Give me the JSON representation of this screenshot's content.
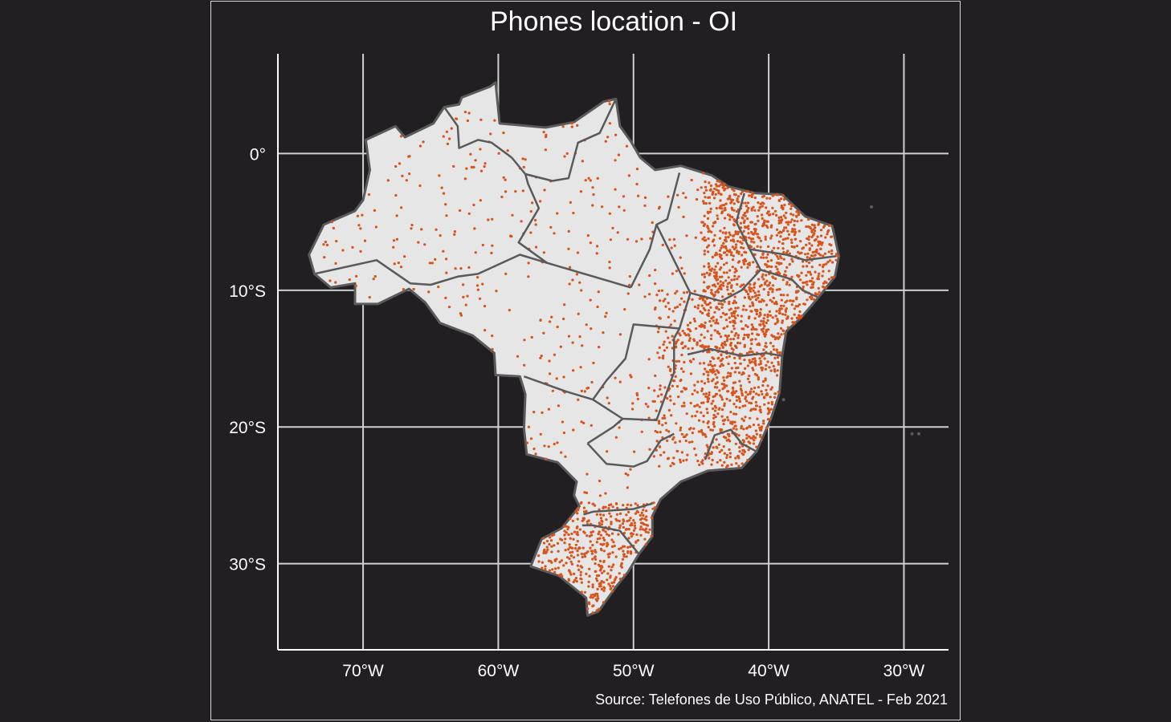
{
  "title": "Phones location - OI",
  "caption": "Source: Telefones de Uso Público, ANATEL - Feb 2021",
  "colors": {
    "background": "#211f22",
    "land": "#e6e6e6",
    "border": "#5a5a5a",
    "grid": "#d0d0d0",
    "points": "#d9541c"
  },
  "map": {
    "lon_range": [
      -76.3,
      -26.7
    ],
    "lat_range": [
      -36.3,
      7.3
    ],
    "lon_ticks": [
      {
        "value": -70,
        "label": "70°W"
      },
      {
        "value": -60,
        "label": "60°W"
      },
      {
        "value": -50,
        "label": "50°W"
      },
      {
        "value": -40,
        "label": "40°W"
      },
      {
        "value": -30,
        "label": "30°W"
      }
    ],
    "lat_ticks": [
      {
        "value": 0,
        "label": "0°"
      },
      {
        "value": -10,
        "label": "10°S"
      },
      {
        "value": -20,
        "label": "20°S"
      },
      {
        "value": -30,
        "label": "30°S"
      }
    ],
    "outline": [
      [
        -60.2,
        5.2
      ],
      [
        -59.9,
        2.2
      ],
      [
        -56.5,
        1.9
      ],
      [
        -54.4,
        2.3
      ],
      [
        -52.2,
        3.8
      ],
      [
        -51.3,
        4.0
      ],
      [
        -51.0,
        2.0
      ],
      [
        -50.2,
        0.9
      ],
      [
        -49.5,
        -0.3
      ],
      [
        -48.4,
        -1.2
      ],
      [
        -46.5,
        -0.9
      ],
      [
        -44.2,
        -1.6
      ],
      [
        -43.0,
        -2.4
      ],
      [
        -41.0,
        -2.9
      ],
      [
        -39.0,
        -3.0
      ],
      [
        -37.3,
        -4.6
      ],
      [
        -35.3,
        -5.3
      ],
      [
        -34.8,
        -7.5
      ],
      [
        -35.1,
        -9.0
      ],
      [
        -36.3,
        -10.5
      ],
      [
        -37.6,
        -12.0
      ],
      [
        -38.7,
        -13.0
      ],
      [
        -39.0,
        -14.8
      ],
      [
        -39.2,
        -17.5
      ],
      [
        -39.8,
        -19.3
      ],
      [
        -40.9,
        -21.8
      ],
      [
        -42.0,
        -23.0
      ],
      [
        -44.5,
        -23.2
      ],
      [
        -46.5,
        -24.0
      ],
      [
        -48.0,
        -25.3
      ],
      [
        -48.6,
        -26.5
      ],
      [
        -48.6,
        -28.0
      ],
      [
        -49.6,
        -29.3
      ],
      [
        -50.4,
        -30.6
      ],
      [
        -51.3,
        -31.7
      ],
      [
        -52.6,
        -33.5
      ],
      [
        -53.4,
        -33.8
      ],
      [
        -53.5,
        -32.5
      ],
      [
        -55.5,
        -30.9
      ],
      [
        -57.6,
        -30.2
      ],
      [
        -56.8,
        -28.2
      ],
      [
        -55.3,
        -27.4
      ],
      [
        -54.0,
        -25.8
      ],
      [
        -54.4,
        -25.0
      ],
      [
        -54.2,
        -24.0
      ],
      [
        -55.6,
        -22.6
      ],
      [
        -57.9,
        -22.0
      ],
      [
        -58.1,
        -20.1
      ],
      [
        -58.0,
        -17.6
      ],
      [
        -58.4,
        -16.3
      ],
      [
        -60.2,
        -16.2
      ],
      [
        -60.3,
        -14.6
      ],
      [
        -61.9,
        -13.3
      ],
      [
        -64.3,
        -12.4
      ],
      [
        -65.4,
        -10.9
      ],
      [
        -66.6,
        -9.9
      ],
      [
        -68.9,
        -11.0
      ],
      [
        -70.6,
        -11.0
      ],
      [
        -70.6,
        -9.5
      ],
      [
        -72.4,
        -9.8
      ],
      [
        -73.6,
        -8.8
      ],
      [
        -74.0,
        -7.4
      ],
      [
        -72.9,
        -5.2
      ],
      [
        -70.6,
        -4.2
      ],
      [
        -70.0,
        -3.4
      ],
      [
        -69.5,
        -1.2
      ],
      [
        -69.8,
        1.0
      ],
      [
        -67.6,
        2.0
      ],
      [
        -66.9,
        1.2
      ],
      [
        -64.8,
        2.2
      ],
      [
        -64.0,
        3.4
      ],
      [
        -62.9,
        3.6
      ],
      [
        -62.7,
        4.1
      ],
      [
        -60.6,
        4.9
      ]
    ],
    "state_borders": [
      [
        [
          -73.6,
          -8.8
        ],
        [
          -69.0,
          -7.8
        ],
        [
          -66.5,
          -9.5
        ],
        [
          -65.0,
          -9.6
        ],
        [
          -63.0,
          -9.0
        ],
        [
          -61.5,
          -8.8
        ],
        [
          -58.4,
          -7.4
        ],
        [
          -56.4,
          -8.0
        ],
        [
          -50.2,
          -9.8
        ]
      ],
      [
        [
          -56.4,
          -8.0
        ],
        [
          -58.5,
          -6.5
        ],
        [
          -57.0,
          -4.0
        ],
        [
          -57.8,
          -2.2
        ],
        [
          -58.0,
          -1.5
        ],
        [
          -59.0,
          -0.3
        ]
      ],
      [
        [
          -59.0,
          -0.3
        ],
        [
          -60.5,
          0.8
        ],
        [
          -61.5,
          1.0
        ],
        [
          -62.9,
          0.4
        ],
        [
          -63.0,
          2.0
        ],
        [
          -64.0,
          3.4
        ]
      ],
      [
        [
          -58.0,
          -1.5
        ],
        [
          -56.0,
          -2.0
        ],
        [
          -54.8,
          -1.8
        ],
        [
          -54.1,
          0.8
        ],
        [
          -52.5,
          1.5
        ],
        [
          -51.3,
          4.0
        ]
      ],
      [
        [
          -50.2,
          -9.8
        ],
        [
          -48.8,
          -7.0
        ],
        [
          -48.3,
          -5.2
        ],
        [
          -47.5,
          -4.8
        ],
        [
          -46.6,
          -1.4
        ]
      ],
      [
        [
          -48.3,
          -5.2
        ],
        [
          -47.4,
          -7.0
        ],
        [
          -45.8,
          -10.2
        ],
        [
          -46.6,
          -12.8
        ],
        [
          -47.0,
          -13.5
        ]
      ],
      [
        [
          -46.6,
          -12.8
        ],
        [
          -50.0,
          -12.5
        ],
        [
          -50.6,
          -15.0
        ],
        [
          -52.0,
          -16.6
        ],
        [
          -53.0,
          -18.0
        ],
        [
          -50.8,
          -19.4
        ],
        [
          -48.3,
          -19.5
        ],
        [
          -47.0,
          -16.0
        ],
        [
          -47.0,
          -13.5
        ]
      ],
      [
        [
          -58.1,
          -16.3
        ],
        [
          -55.0,
          -17.4
        ],
        [
          -53.0,
          -18.0
        ]
      ],
      [
        [
          -53.4,
          -21.2
        ],
        [
          -51.5,
          -20.0
        ],
        [
          -50.8,
          -19.4
        ]
      ],
      [
        [
          -53.4,
          -21.2
        ],
        [
          -52.0,
          -22.7
        ],
        [
          -50.0,
          -22.9
        ],
        [
          -49.0,
          -22.5
        ],
        [
          -48.0,
          -21.0
        ],
        [
          -47.0,
          -20.5
        ]
      ],
      [
        [
          -41.8,
          -2.9
        ],
        [
          -42.4,
          -5.0
        ],
        [
          -41.4,
          -7.0
        ],
        [
          -40.6,
          -8.5
        ],
        [
          -42.0,
          -10.0
        ],
        [
          -43.5,
          -10.8
        ],
        [
          -45.8,
          -10.2
        ]
      ],
      [
        [
          -41.4,
          -7.0
        ],
        [
          -38.7,
          -7.4
        ],
        [
          -37.3,
          -7.8
        ],
        [
          -35.0,
          -7.5
        ]
      ],
      [
        [
          -40.6,
          -8.5
        ],
        [
          -38.3,
          -9.2
        ],
        [
          -37.5,
          -10.0
        ],
        [
          -36.4,
          -10.5
        ]
      ],
      [
        [
          -39.0,
          -14.8
        ],
        [
          -40.2,
          -14.6
        ],
        [
          -42.0,
          -14.8
        ],
        [
          -44.3,
          -14.3
        ],
        [
          -46.0,
          -14.7
        ]
      ],
      [
        [
          -40.9,
          -21.8
        ],
        [
          -42.0,
          -21.2
        ],
        [
          -42.8,
          -20.2
        ],
        [
          -44.0,
          -20.6
        ],
        [
          -44.7,
          -22.4
        ]
      ],
      [
        [
          -48.6,
          -25.6
        ],
        [
          -50.0,
          -26.0
        ],
        [
          -53.0,
          -26.2
        ],
        [
          -53.7,
          -26.4
        ]
      ],
      [
        [
          -49.6,
          -29.3
        ],
        [
          -51.0,
          -27.6
        ],
        [
          -53.0,
          -27.2
        ],
        [
          -53.8,
          -27.2
        ]
      ]
    ],
    "islands": [
      [
        -32.4,
        -3.9
      ],
      [
        -29.4,
        -20.5
      ],
      [
        -28.9,
        -20.5
      ],
      [
        -38.9,
        -18.0
      ]
    ]
  }
}
